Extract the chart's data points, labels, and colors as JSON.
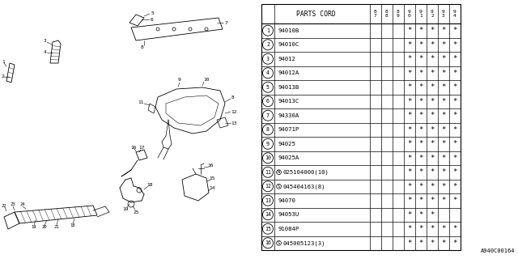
{
  "fig_width": 6.4,
  "fig_height": 3.2,
  "dpi": 100,
  "bg_color": "#ffffff",
  "rows": [
    {
      "num": "1",
      "prefix": "",
      "code": "94010B",
      "stars": [
        0,
        0,
        0,
        1,
        1,
        1,
        1,
        1
      ]
    },
    {
      "num": "2",
      "prefix": "",
      "code": "94010C",
      "stars": [
        0,
        0,
        0,
        1,
        1,
        1,
        1,
        1
      ]
    },
    {
      "num": "3",
      "prefix": "",
      "code": "94012",
      "stars": [
        0,
        0,
        0,
        1,
        1,
        1,
        1,
        1
      ]
    },
    {
      "num": "4",
      "prefix": "",
      "code": "94012A",
      "stars": [
        0,
        0,
        0,
        1,
        1,
        1,
        1,
        1
      ]
    },
    {
      "num": "5",
      "prefix": "",
      "code": "94013B",
      "stars": [
        0,
        0,
        0,
        1,
        1,
        1,
        1,
        1
      ]
    },
    {
      "num": "6",
      "prefix": "",
      "code": "94013C",
      "stars": [
        0,
        0,
        0,
        1,
        1,
        1,
        1,
        1
      ]
    },
    {
      "num": "7",
      "prefix": "",
      "code": "94330A",
      "stars": [
        0,
        0,
        0,
        1,
        1,
        1,
        1,
        1
      ]
    },
    {
      "num": "8",
      "prefix": "",
      "code": "94071P",
      "stars": [
        0,
        0,
        0,
        1,
        1,
        1,
        1,
        1
      ]
    },
    {
      "num": "9",
      "prefix": "",
      "code": "94025",
      "stars": [
        0,
        0,
        0,
        1,
        1,
        1,
        1,
        1
      ]
    },
    {
      "num": "10",
      "prefix": "",
      "code": "94025A",
      "stars": [
        0,
        0,
        0,
        1,
        1,
        1,
        1,
        1
      ]
    },
    {
      "num": "11",
      "prefix": "N",
      "code": "025104000(10)",
      "stars": [
        0,
        0,
        0,
        1,
        1,
        1,
        1,
        1
      ]
    },
    {
      "num": "12",
      "prefix": "S",
      "code": "045404163(8)",
      "stars": [
        0,
        0,
        0,
        1,
        1,
        1,
        1,
        1
      ]
    },
    {
      "num": "13",
      "prefix": "",
      "code": "94070",
      "stars": [
        0,
        0,
        0,
        1,
        1,
        1,
        1,
        1
      ]
    },
    {
      "num": "14",
      "prefix": "",
      "code": "94053U",
      "stars": [
        0,
        0,
        0,
        1,
        1,
        1,
        0,
        0
      ]
    },
    {
      "num": "15",
      "prefix": "",
      "code": "91084P",
      "stars": [
        0,
        0,
        0,
        1,
        1,
        1,
        1,
        1
      ]
    },
    {
      "num": "16",
      "prefix": "S",
      "code": "045005123(3)",
      "stars": [
        0,
        0,
        0,
        1,
        1,
        1,
        1,
        1
      ]
    }
  ],
  "year_labels": [
    "8\n7",
    "8\n8",
    "8\n9",
    "9\n0",
    "9\n1",
    "9\n2",
    "9\n3",
    "9\n4"
  ],
  "watermark": "A940C00164",
  "lc": "#000000",
  "tc": "#000000"
}
